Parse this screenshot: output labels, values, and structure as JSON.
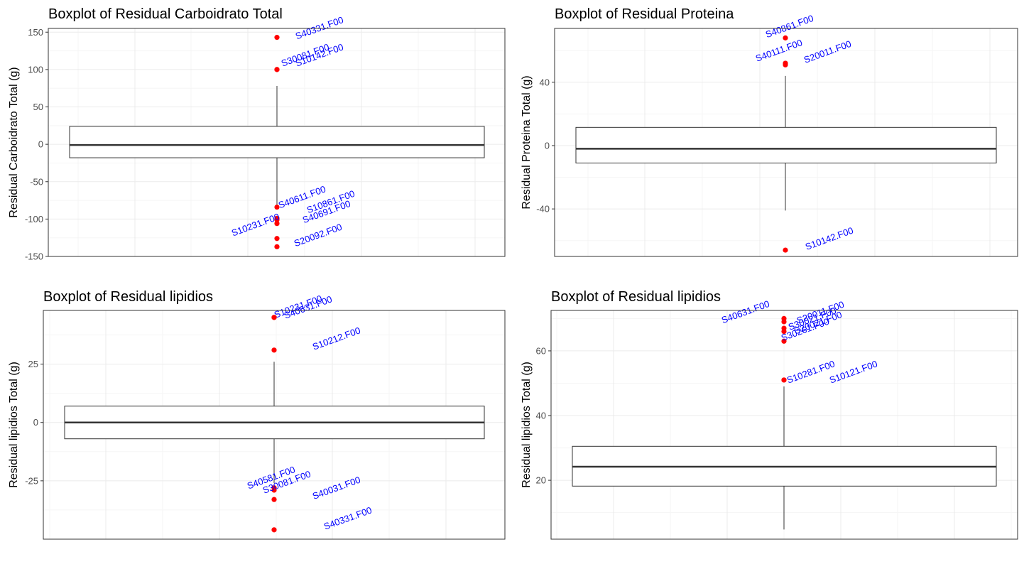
{
  "colors": {
    "background": "#ffffff",
    "panel_border": "#333333",
    "grid_major": "#ebebeb",
    "grid_minor": "#f5f5f5",
    "box": "#333333",
    "outlier": "#ff0000",
    "label": "#0000ff"
  },
  "chart_data": [
    {
      "type": "boxplot",
      "title": "Boxplot of Residual Carboidrato Total",
      "ylabel": "Residual Carboidrato Total (g)",
      "xlabel": "",
      "ylim": [
        -150,
        155
      ],
      "yticks": [
        -150,
        -100,
        -50,
        0,
        50,
        100,
        150
      ],
      "grid": true,
      "box": {
        "q1": -18,
        "median": -1,
        "q3": 24,
        "whisker_low": -85,
        "whisker_high": 78
      },
      "outliers": [
        {
          "label": "S40331.F00",
          "value": 143
        },
        {
          "label": "S30081.F00",
          "value": 100
        },
        {
          "label": "S10142.F00",
          "value": 100
        },
        {
          "label": "S40611.F00",
          "value": -84
        },
        {
          "label": "S10861.F00",
          "value": -99
        },
        {
          "label": "S40691.F00",
          "value": -101
        },
        {
          "label": "S10231.F00",
          "value": -106
        },
        {
          "label": "S20092.F00",
          "value": -137
        }
      ],
      "extra_points": [
        -126
      ]
    },
    {
      "type": "boxplot",
      "title": "Boxplot of Residual Proteina",
      "ylabel": "Residual Proteina Total (g)",
      "xlabel": "",
      "ylim": [
        -70,
        74
      ],
      "yticks": [
        -40,
        0,
        40
      ],
      "grid": true,
      "box": {
        "q1": -11,
        "median": -2,
        "q3": 11.5,
        "whisker_low": -41,
        "whisker_high": 44
      },
      "outliers": [
        {
          "label": "S40861.F00",
          "value": 68
        },
        {
          "label": "S40111.F00",
          "value": 52
        },
        {
          "label": "S20011.F00",
          "value": 52
        },
        {
          "label": "S10142.F00",
          "value": -66
        }
      ],
      "extra_points": [
        51
      ]
    },
    {
      "type": "boxplot",
      "title": "Boxplot of Residual lipidios",
      "ylabel": "Residual lipidios Total (g)",
      "xlabel": "",
      "ylim": [
        -50,
        48
      ],
      "yticks": [
        -25,
        0,
        25
      ],
      "grid": true,
      "box": {
        "q1": -7,
        "median": 0,
        "q3": 7,
        "whisker_low": -26,
        "whisker_high": 26
      },
      "outliers": [
        {
          "label": "S10231.F00",
          "value": 45
        },
        {
          "label": "S40631.F00",
          "value": 45
        },
        {
          "label": "S10212.F00",
          "value": 31
        },
        {
          "label": "S40581.F00",
          "value": -28
        },
        {
          "label": "S30081.F00",
          "value": -29
        },
        {
          "label": "S40031.F00",
          "value": -33
        },
        {
          "label": "S40331.F00",
          "value": -46
        }
      ],
      "extra_points": []
    },
    {
      "type": "boxplot",
      "title": "Boxplot of Residual lipidios",
      "ylabel": "Residual lipidios Total (g)",
      "xlabel": "",
      "ylim": [
        1.8,
        72.5
      ],
      "yticks": [
        20,
        40,
        60
      ],
      "grid": true,
      "box": {
        "q1": 18.2,
        "median": 24.2,
        "q3": 30.5,
        "whisker_low": 4.8,
        "whisker_high": 49
      },
      "outliers": [
        {
          "label": "S40631.F00",
          "value": 70
        },
        {
          "label": "S20011.F00",
          "value": 69
        },
        {
          "label": "S30021.F00",
          "value": 67
        },
        {
          "label": "S20021.F00",
          "value": 66
        },
        {
          "label": "S30261.F00",
          "value": 63
        },
        {
          "label": "S10281.F00",
          "value": 51
        },
        {
          "label": "S10121.F00",
          "value": 51
        }
      ],
      "extra_points": []
    }
  ]
}
